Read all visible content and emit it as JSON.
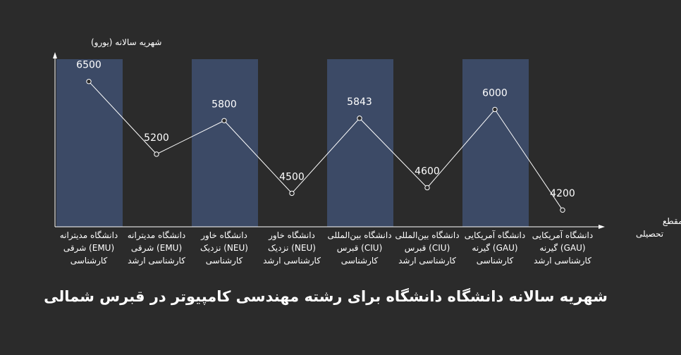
{
  "chart_data": {
    "type": "line",
    "title": "شهریه سالانه دانشگاه دانشگاه برای رشته مهندسی کامپیوتر در قبرس شمالی",
    "ylabel": "شهریه سالانه (یورو)",
    "xlabel": "دانشگاه و مقطع تحصیلی",
    "ylim": [
      3900,
      6900
    ],
    "categories": [
      [
        "دانشگاه مدیترانه",
        "(EMU) شرقی",
        "کارشناسی"
      ],
      [
        "دانشگاه مدیترانه",
        "(EMU) شرقی",
        "کارشناسی ارشد"
      ],
      [
        "دانشگاه خاور",
        "(NEU) نزدیک",
        "کارشناسی"
      ],
      [
        "دانشگاه خاور",
        "(NEU) نزدیک",
        "کارشناسی ارشد"
      ],
      [
        "دانشگاه بین‌المللی",
        "(CIU) قبرس",
        "کارشناسی"
      ],
      [
        "دانشگاه بین‌المللی",
        "(CIU) قبرس",
        "کارشناسی ارشد"
      ],
      [
        "دانشگاه آمریکایی",
        "(GAU) گیرنه",
        "کارشناسی"
      ],
      [
        "دانشگاه آمریکایی",
        "(GAU) گیرنه",
        "کارشناسی ارشد"
      ]
    ],
    "values": [
      6500,
      5200,
      5800,
      4500,
      5843,
      4600,
      6000,
      4200
    ],
    "colors": {
      "band": "#3c4a66",
      "line": "#ffffff",
      "axis": "#ffffff",
      "background": "#2b2b2b"
    }
  }
}
